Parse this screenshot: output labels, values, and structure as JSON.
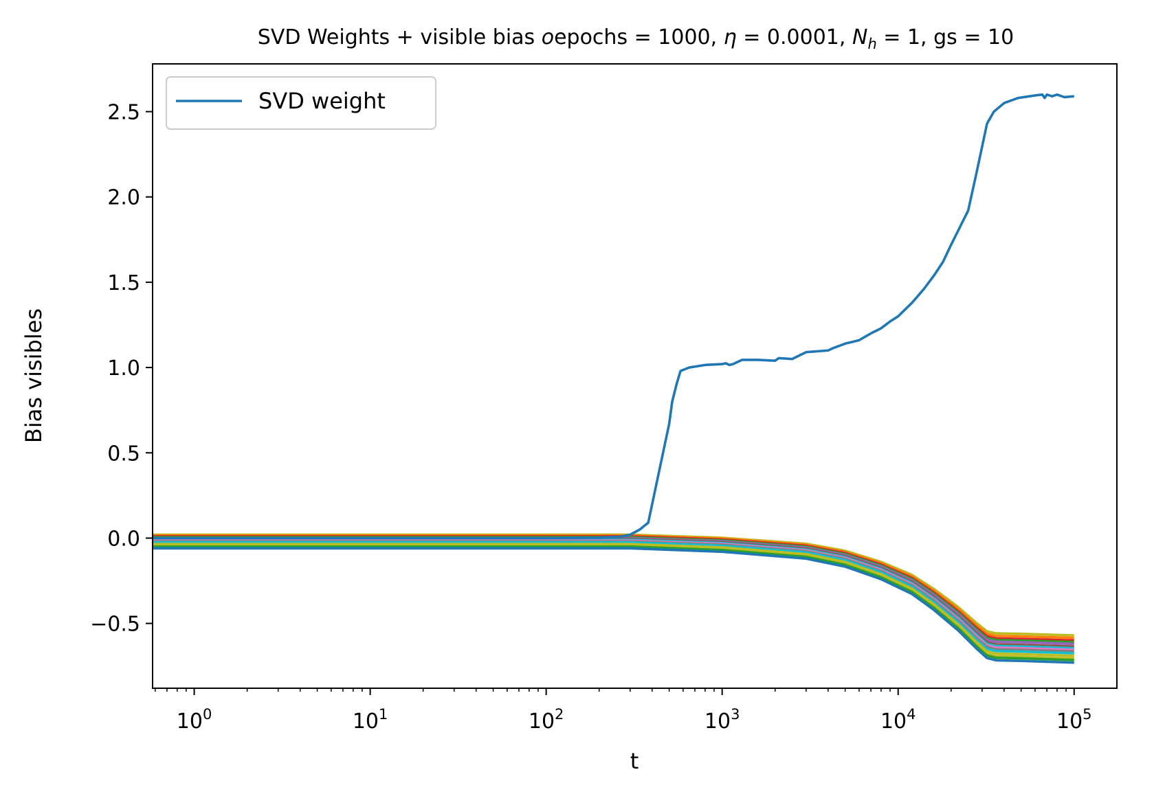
{
  "chart_data": {
    "type": "line",
    "title_parts": {
      "prefix": "SVD Weights + visible bias ",
      "o": "o",
      "epochs_text": "epochs = 1000, ",
      "eta": "η",
      "eta_text": " = 0.0001, ",
      "N": "N",
      "h": "h",
      "nh_text": " = 1, gs = 10"
    },
    "xlabel": "t",
    "ylabel": "Bias visibles",
    "xscale": "log",
    "xlim": [
      0.58,
      175000
    ],
    "ylim": [
      -0.88,
      2.78
    ],
    "grid": false,
    "legend": {
      "position": "upper-left",
      "entries": [
        "SVD weight"
      ]
    },
    "x_ticks": [
      {
        "base": "10",
        "exp": "0",
        "value": 1
      },
      {
        "base": "10",
        "exp": "1",
        "value": 10
      },
      {
        "base": "10",
        "exp": "2",
        "value": 100
      },
      {
        "base": "10",
        "exp": "3",
        "value": 1000
      },
      {
        "base": "10",
        "exp": "4",
        "value": 10000
      },
      {
        "base": "10",
        "exp": "5",
        "value": 100000
      }
    ],
    "y_ticks": [
      {
        "label": "−0.5",
        "value": -0.5
      },
      {
        "label": "0.0",
        "value": 0.0
      },
      {
        "label": "0.5",
        "value": 0.5
      },
      {
        "label": "1.0",
        "value": 1.0
      },
      {
        "label": "1.5",
        "value": 1.5
      },
      {
        "label": "2.0",
        "value": 2.0
      },
      {
        "label": "2.5",
        "value": 2.5
      }
    ],
    "svd_series": {
      "name": "SVD weight",
      "color": "#1f77b4",
      "points": [
        [
          0.58,
          0.0
        ],
        [
          100,
          0.0
        ],
        [
          200,
          0.002
        ],
        [
          260,
          0.008
        ],
        [
          300,
          0.02
        ],
        [
          340,
          0.05
        ],
        [
          380,
          0.09
        ],
        [
          440,
          0.4
        ],
        [
          500,
          0.67
        ],
        [
          520,
          0.8
        ],
        [
          550,
          0.9
        ],
        [
          580,
          0.98
        ],
        [
          650,
          1.0
        ],
        [
          800,
          1.015
        ],
        [
          1000,
          1.02
        ],
        [
          1050,
          1.025
        ],
        [
          1100,
          1.015
        ],
        [
          1150,
          1.02
        ],
        [
          1300,
          1.045
        ],
        [
          1600,
          1.045
        ],
        [
          2000,
          1.04
        ],
        [
          2100,
          1.055
        ],
        [
          2500,
          1.05
        ],
        [
          3000,
          1.09
        ],
        [
          4000,
          1.1
        ],
        [
          4300,
          1.115
        ],
        [
          5000,
          1.14
        ],
        [
          6000,
          1.16
        ],
        [
          7000,
          1.2
        ],
        [
          8000,
          1.23
        ],
        [
          9000,
          1.27
        ],
        [
          10000,
          1.3
        ],
        [
          12000,
          1.38
        ],
        [
          14000,
          1.46
        ],
        [
          16000,
          1.54
        ],
        [
          18000,
          1.62
        ],
        [
          20000,
          1.72
        ],
        [
          25000,
          1.92
        ],
        [
          28000,
          2.15
        ],
        [
          32000,
          2.43
        ],
        [
          35000,
          2.5
        ],
        [
          40000,
          2.55
        ],
        [
          48000,
          2.58
        ],
        [
          60000,
          2.595
        ],
        [
          66000,
          2.6
        ],
        [
          68000,
          2.58
        ],
        [
          70000,
          2.6
        ],
        [
          75000,
          2.59
        ],
        [
          80000,
          2.6
        ],
        [
          88000,
          2.585
        ],
        [
          100000,
          2.59
        ]
      ]
    },
    "bias_series": [
      {
        "color": "#bcbd22",
        "start": 0.02,
        "end": -0.57
      },
      {
        "color": "#ff7f0e",
        "start": 0.015,
        "end": -0.585
      },
      {
        "color": "#d62728",
        "start": 0.01,
        "end": -0.6
      },
      {
        "color": "#2ca02c",
        "start": 0.005,
        "end": -0.61
      },
      {
        "color": "#9467bd",
        "start": 0.0,
        "end": -0.62
      },
      {
        "color": "#8c564b",
        "start": -0.005,
        "end": -0.635
      },
      {
        "color": "#17becf",
        "start": -0.01,
        "end": -0.645
      },
      {
        "color": "#e377c2",
        "start": -0.015,
        "end": -0.655
      },
      {
        "color": "#7f7f7f",
        "start": -0.02,
        "end": -0.665
      },
      {
        "color": "#17becf",
        "start": -0.025,
        "end": -0.675
      },
      {
        "color": "#bcbd22",
        "start": -0.035,
        "end": -0.69
      },
      {
        "color": "#bcbd22",
        "start": -0.045,
        "end": -0.705
      },
      {
        "color": "#2ca02c",
        "start": -0.05,
        "end": -0.715
      },
      {
        "color": "#1f77b4",
        "start": -0.06,
        "end": -0.73
      }
    ],
    "bias_shape": [
      [
        0.58,
        0.0
      ],
      [
        300,
        0.0
      ],
      [
        1000,
        0.03
      ],
      [
        3000,
        0.09
      ],
      [
        5000,
        0.16
      ],
      [
        8000,
        0.27
      ],
      [
        12000,
        0.4
      ],
      [
        16000,
        0.54
      ],
      [
        22000,
        0.72
      ],
      [
        28000,
        0.88
      ],
      [
        32000,
        0.96
      ],
      [
        36000,
        0.98
      ],
      [
        50000,
        0.985
      ],
      [
        100000,
        1.0
      ]
    ]
  }
}
